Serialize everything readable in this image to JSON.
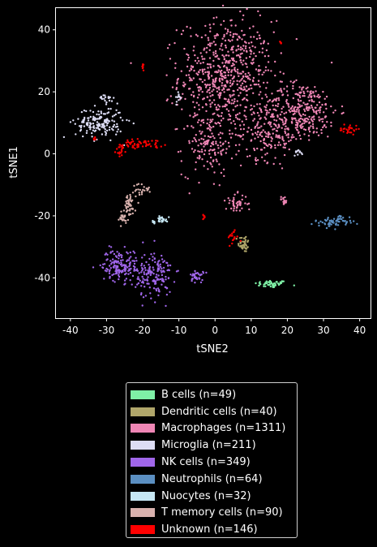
{
  "chart_data": {
    "type": "scatter",
    "title": "",
    "xlabel": "tSNE2",
    "ylabel": "tSNE1",
    "xlim": [
      -44,
      43
    ],
    "ylim": [
      -53,
      47
    ],
    "xticks": [
      "-40",
      "-30",
      "-20",
      "-10",
      "0",
      "10",
      "20",
      "30",
      "40"
    ],
    "xtick_values": [
      -40,
      -30,
      -20,
      -10,
      0,
      10,
      20,
      30,
      40
    ],
    "yticks": [
      "40",
      "20",
      "0",
      "-20",
      "-40"
    ],
    "ytick_values": [
      40,
      20,
      0,
      -20,
      -40
    ],
    "grid": false,
    "legend_position": "below",
    "series": [
      {
        "name": "B cells (n=49)",
        "color": "#7ff0a6",
        "clusters": [
          {
            "cx": 15.5,
            "cy": -42,
            "sx": 2.3,
            "sy": 0.6,
            "n": 49
          }
        ]
      },
      {
        "name": "Dendritic cells (n=40)",
        "color": "#b0a66a",
        "clusters": [
          {
            "cx": 8,
            "cy": -29,
            "sx": 0.8,
            "sy": 1.4,
            "n": 40
          }
        ]
      },
      {
        "name": "Macrophages (n=1311)",
        "color": "#ef86b5",
        "clusters": [
          {
            "cx": 3,
            "cy": 25,
            "sx": 6.5,
            "sy": 9,
            "n": 650
          },
          {
            "cx": -2,
            "cy": 3,
            "sx": 3.5,
            "sy": 5,
            "n": 140
          },
          {
            "cx": 24,
            "cy": 14,
            "sx": 5,
            "sy": 4.5,
            "n": 300
          },
          {
            "cx": 15,
            "cy": 6,
            "sx": 4.5,
            "sy": 4,
            "n": 160
          },
          {
            "cx": 6,
            "cy": -16,
            "sx": 1.5,
            "sy": 1.5,
            "n": 45
          },
          {
            "cx": 19,
            "cy": -15,
            "sx": 0.6,
            "sy": 0.6,
            "n": 16
          }
        ]
      },
      {
        "name": "Microglia (n=211)",
        "color": "#dcdcf4",
        "clusters": [
          {
            "cx": -32,
            "cy": 10,
            "sx": 3.3,
            "sy": 2.5,
            "n": 170
          },
          {
            "cx": -30,
            "cy": 18,
            "sx": 1.0,
            "sy": 0.6,
            "n": 18
          },
          {
            "cx": -10,
            "cy": 18.5,
            "sx": 0.6,
            "sy": 1.0,
            "n": 12
          },
          {
            "cx": 23,
            "cy": 0.5,
            "sx": 0.6,
            "sy": 0.5,
            "n": 11
          }
        ]
      },
      {
        "name": "NK cells (n=349)",
        "color": "#a066ea",
        "clusters": [
          {
            "cx": -26.5,
            "cy": -36,
            "sx": 2.4,
            "sy": 2.5,
            "n": 150
          },
          {
            "cx": -17,
            "cy": -39,
            "sx": 2.6,
            "sy": 3.8,
            "n": 165
          },
          {
            "cx": -5,
            "cy": -39.5,
            "sx": 0.9,
            "sy": 1.0,
            "n": 34
          }
        ]
      },
      {
        "name": "Neutrophils (n=64)",
        "color": "#5b8fc2",
        "clusters": [
          {
            "cx": 33,
            "cy": -22,
            "sx": 2.7,
            "sy": 0.8,
            "n": 50
          },
          {
            "cx": 34.5,
            "cy": -21,
            "sx": 1.0,
            "sy": 0.6,
            "n": 14
          }
        ]
      },
      {
        "name": "Nuocytes (n=32)",
        "color": "#c6e7f4",
        "clusters": [
          {
            "cx": -14.5,
            "cy": -21,
            "sx": 0.7,
            "sy": 0.5,
            "n": 22
          },
          {
            "cx": -17,
            "cy": -22,
            "sx": 0.3,
            "sy": 0.3,
            "n": 10
          }
        ]
      },
      {
        "name": "T memory cells (n=90)",
        "color": "#d9b2ae",
        "clusters": [
          {
            "cx": -24,
            "cy": -17,
            "sx": 1.0,
            "sy": 2.0,
            "n": 45
          },
          {
            "cx": -25.5,
            "cy": -21,
            "sx": 1.0,
            "sy": 1.0,
            "n": 20
          },
          {
            "cx": -20,
            "cy": -11.5,
            "sx": 1.3,
            "sy": 1.0,
            "n": 25
          }
        ]
      },
      {
        "name": "Unknown (n=146)",
        "color": "#ff0000",
        "clusters": [
          {
            "cx": -19.5,
            "cy": 3.5,
            "sx": 3.0,
            "sy": 0.6,
            "n": 40
          },
          {
            "cx": -26,
            "cy": 1,
            "sx": 0.7,
            "sy": 1.2,
            "n": 16
          },
          {
            "cx": 37,
            "cy": 8,
            "sx": 1.3,
            "sy": 0.9,
            "n": 28
          },
          {
            "cx": 5,
            "cy": -27,
            "sx": 0.8,
            "sy": 1.3,
            "n": 18
          },
          {
            "cx": -20,
            "cy": 28,
            "sx": 0.2,
            "sy": 0.6,
            "n": 8
          },
          {
            "cx": 18,
            "cy": 36,
            "sx": 0.3,
            "sy": 0.3,
            "n": 5
          },
          {
            "cx": -3,
            "cy": -20.5,
            "sx": 0.3,
            "sy": 0.6,
            "n": 6
          },
          {
            "cx": -33,
            "cy": 5,
            "sx": 0.3,
            "sy": 0.3,
            "n": 4
          },
          {
            "cx": -23,
            "cy": 2.5,
            "sx": 2.0,
            "sy": 0.5,
            "n": 21
          }
        ]
      }
    ]
  }
}
